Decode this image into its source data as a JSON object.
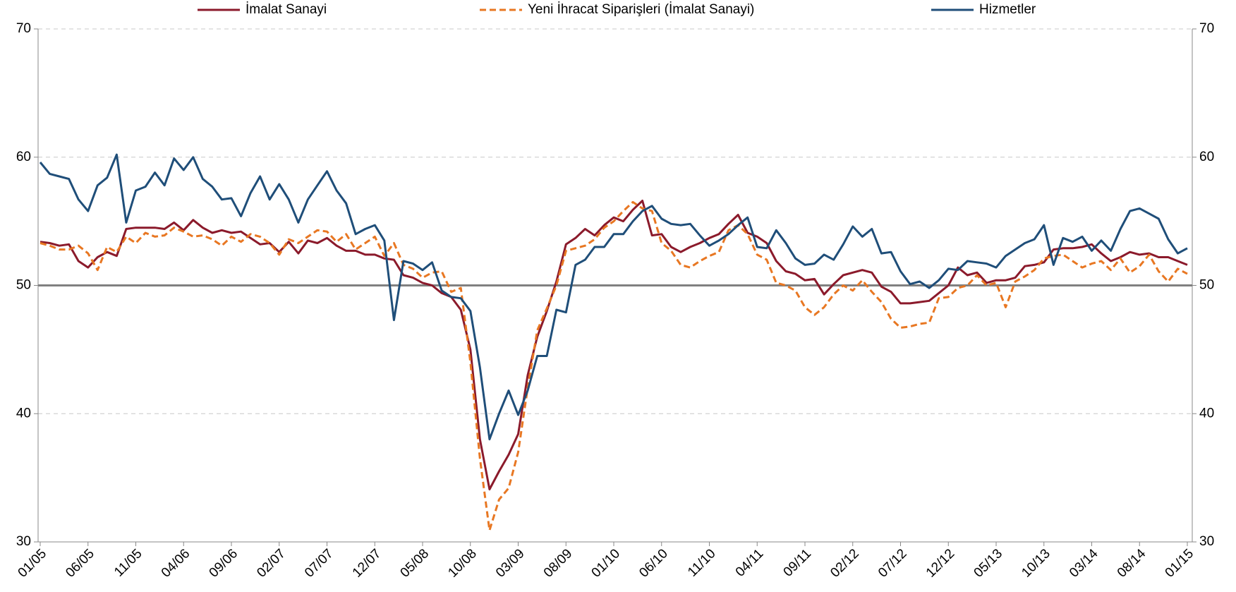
{
  "chart_data": {
    "type": "line",
    "categories": [
      "01/05",
      null,
      null,
      null,
      null,
      "06/05",
      null,
      null,
      null,
      null,
      "11/05",
      null,
      null,
      null,
      null,
      "04/06",
      null,
      null,
      null,
      null,
      "09/06",
      null,
      null,
      null,
      null,
      "02/07",
      null,
      null,
      null,
      null,
      "07/07",
      null,
      null,
      null,
      null,
      "12/07",
      null,
      null,
      null,
      null,
      "05/08",
      null,
      null,
      null,
      null,
      "10/08",
      null,
      null,
      null,
      null,
      "03/09",
      null,
      null,
      null,
      null,
      "08/09",
      null,
      null,
      null,
      null,
      "01/10",
      null,
      null,
      null,
      null,
      "06/10",
      null,
      null,
      null,
      null,
      "11/10",
      null,
      null,
      null,
      null,
      "04/11",
      null,
      null,
      null,
      null,
      "09/11",
      null,
      null,
      null,
      null,
      "02/12",
      null,
      null,
      null,
      null,
      "07/12",
      null,
      null,
      null,
      null,
      "12/12",
      null,
      null,
      null,
      null,
      "05/13",
      null,
      null,
      null,
      null,
      "10/13",
      null,
      null,
      null,
      null,
      "03/14",
      null,
      null,
      null,
      null,
      "08/14",
      null,
      null,
      null,
      null,
      "01/15"
    ],
    "series": [
      {
        "name": "İmalat Sanayi",
        "color": "#8b1a2b",
        "dashed": false,
        "values": [
          53.4,
          53.3,
          53.1,
          53.2,
          51.9,
          51.4,
          52.2,
          52.6,
          52.3,
          54.4,
          54.5,
          54.5,
          54.5,
          54.4,
          54.9,
          54.3,
          55.1,
          54.5,
          54.1,
          54.3,
          54.1,
          54.2,
          53.7,
          53.2,
          53.3,
          52.6,
          53.4,
          52.5,
          53.5,
          53.3,
          53.7,
          53.1,
          52.7,
          52.7,
          52.4,
          52.4,
          52.1,
          52.0,
          50.8,
          50.6,
          50.2,
          50.0,
          49.4,
          49.1,
          48.1,
          45.0,
          38.0,
          34.1,
          35.5,
          36.8,
          38.4,
          43.0,
          46.0,
          48.0,
          50.3,
          53.2,
          53.7,
          54.4,
          53.9,
          54.7,
          55.3,
          55.0,
          55.9,
          56.6,
          53.9,
          54.0,
          53.0,
          52.6,
          53.0,
          53.3,
          53.7,
          54.0,
          54.8,
          55.5,
          54.1,
          53.8,
          53.3,
          51.9,
          51.1,
          50.9,
          50.4,
          50.5,
          49.3,
          50.1,
          50.8,
          51.0,
          51.2,
          51.0,
          49.9,
          49.5,
          48.6,
          48.6,
          48.7,
          48.8,
          49.4,
          50.0,
          51.4,
          50.8,
          51.0,
          50.2,
          50.4,
          50.4,
          50.6,
          51.5,
          51.6,
          51.8,
          52.8,
          52.9,
          52.9,
          53.0,
          53.2,
          52.5,
          51.9,
          52.2,
          52.6,
          52.4,
          52.5,
          52.2,
          52.2,
          51.9,
          51.6
        ]
      },
      {
        "name": "Yeni İhracat Siparişleri (İmalat Sanayi)",
        "color": "#e87722",
        "dashed": true,
        "values": [
          53.3,
          53.1,
          52.8,
          52.8,
          53.1,
          52.5,
          51.2,
          53.0,
          52.6,
          53.8,
          53.3,
          54.1,
          53.8,
          53.9,
          54.5,
          54.2,
          53.8,
          53.9,
          53.6,
          53.1,
          53.8,
          53.4,
          54.0,
          53.8,
          53.3,
          52.4,
          53.6,
          53.3,
          53.8,
          54.3,
          54.2,
          53.4,
          54.0,
          52.8,
          53.3,
          53.8,
          52.3,
          53.3,
          51.6,
          51.3,
          50.6,
          51.0,
          51.1,
          49.5,
          49.8,
          44.0,
          36.5,
          30.9,
          33.3,
          34.2,
          37.0,
          42.0,
          46.5,
          48.2,
          50.0,
          52.7,
          52.9,
          53.1,
          53.6,
          54.5,
          55.0,
          55.8,
          56.5,
          56.0,
          55.8,
          53.3,
          52.7,
          51.6,
          51.4,
          51.9,
          52.3,
          52.6,
          54.3,
          54.7,
          54.0,
          52.4,
          52.0,
          50.2,
          50.0,
          49.6,
          48.3,
          47.7,
          48.3,
          49.3,
          50.0,
          49.6,
          50.4,
          49.5,
          48.7,
          47.4,
          46.7,
          46.8,
          47.0,
          47.1,
          49.0,
          49.1,
          49.8,
          50.0,
          50.8,
          50.0,
          50.2,
          48.3,
          50.3,
          50.7,
          51.2,
          52.1,
          52.3,
          52.4,
          51.9,
          51.4,
          51.7,
          51.9,
          51.2,
          52.1,
          51.0,
          51.5,
          52.4,
          51.1,
          50.3,
          51.3,
          50.9
        ]
      },
      {
        "name": "Hizmetler",
        "color": "#1f4e79",
        "dashed": false,
        "values": [
          59.6,
          58.7,
          58.5,
          58.3,
          56.7,
          55.8,
          57.8,
          58.4,
          60.2,
          54.9,
          57.4,
          57.7,
          58.8,
          57.8,
          59.9,
          59.0,
          60.0,
          58.3,
          57.7,
          56.7,
          56.8,
          55.4,
          57.2,
          58.5,
          56.7,
          57.9,
          56.7,
          54.9,
          56.7,
          57.8,
          58.9,
          57.4,
          56.4,
          54.0,
          54.4,
          54.7,
          53.5,
          47.3,
          51.9,
          51.7,
          51.2,
          51.8,
          49.6,
          49.1,
          49.0,
          48.0,
          43.6,
          38.0,
          40.0,
          41.8,
          39.9,
          41.8,
          44.5,
          44.5,
          48.1,
          47.9,
          51.6,
          52.0,
          53.0,
          53.0,
          54.0,
          54.0,
          55.0,
          55.8,
          56.2,
          55.2,
          54.8,
          54.7,
          54.8,
          53.9,
          53.1,
          53.5,
          54.0,
          54.7,
          55.3,
          53.0,
          52.9,
          54.3,
          53.3,
          52.1,
          51.6,
          51.7,
          52.4,
          52.0,
          53.2,
          54.6,
          53.8,
          54.4,
          52.5,
          52.6,
          51.1,
          50.1,
          50.3,
          49.8,
          50.4,
          51.3,
          51.2,
          51.9,
          51.8,
          51.7,
          51.4,
          52.3,
          52.8,
          53.3,
          53.6,
          54.7,
          51.6,
          53.7,
          53.4,
          53.8,
          52.7,
          53.5,
          52.7,
          54.4,
          55.8,
          56.0,
          55.6,
          55.2,
          53.6,
          52.5,
          52.9
        ]
      }
    ],
    "ylim": [
      30,
      70
    ],
    "yticks": [
      30,
      40,
      50,
      60,
      70
    ],
    "y2lim": [
      30,
      70
    ],
    "y2ticks": [
      30,
      40,
      50,
      60,
      70
    ],
    "reference_line": 50,
    "grid": true,
    "legend": "top"
  }
}
